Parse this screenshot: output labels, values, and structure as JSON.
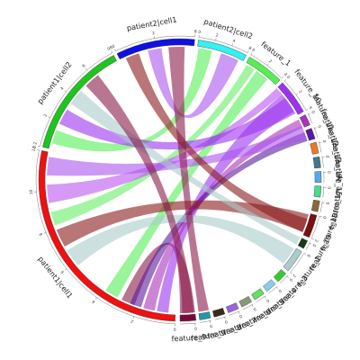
{
  "chart_data": {
    "type": "chord",
    "title": "",
    "sectors": [
      {
        "name": "patient1|cell1",
        "color": "#ee1111",
        "start": 92,
        "end": 192,
        "ticks": [
          "0",
          "2",
          "4",
          "6",
          "8",
          "10",
          "12"
        ]
      },
      {
        "name": "patient1|cell2",
        "color": "#1fc41f",
        "start": 193.5,
        "end": 242,
        "ticks": [
          "0.2",
          "2",
          "4",
          "6",
          "08"
        ]
      },
      {
        "name": "patient2|cell1",
        "color": "#1010e0",
        "start": 243.5,
        "end": 276,
        "ticks": [
          "0",
          "2",
          "8"
        ]
      },
      {
        "name": "patient2|cell2",
        "color": "#33f2f2",
        "start": 277.5,
        "end": 298,
        "ticks": [
          "0",
          "2",
          "4",
          "8"
        ]
      },
      {
        "name": "feature_1",
        "color": "#55ee55",
        "start": 299.5,
        "end": 315,
        "ticks": [
          "0",
          "2",
          "4"
        ]
      },
      {
        "name": "feature_10",
        "color": "#9b33ee",
        "start": 316.5,
        "end": 331,
        "ticks": [
          "0",
          "2",
          "4"
        ]
      },
      {
        "name": "feature_11",
        "color": "#aa33bb",
        "start": 332.5,
        "end": 337,
        "ticks": [
          "0"
        ]
      },
      {
        "name": "feature_12",
        "color": "#5a1a9a",
        "start": 338.5,
        "end": 343,
        "ticks": [
          "0"
        ]
      },
      {
        "name": "feature_13",
        "color": "#ee7722",
        "start": 344.5,
        "end": 349,
        "ticks": [
          "0"
        ]
      },
      {
        "name": "feature_14",
        "color": "#447788",
        "start": 350.5,
        "end": 355,
        "ticks": [
          "0"
        ]
      },
      {
        "name": "feature_15",
        "color": "#55aaee",
        "start": 356.5,
        "end": 361,
        "ticks": [
          "0"
        ]
      },
      {
        "name": "feature_16",
        "color": "#44dd88",
        "start": 362.5,
        "end": 367,
        "ticks": [
          "0"
        ]
      },
      {
        "name": "feature_17",
        "color": "#8a6a3a",
        "start": 368.5,
        "end": 373,
        "ticks": [
          "0"
        ]
      },
      {
        "name": "feature_18",
        "color": "#7a1010",
        "start": 374.5,
        "end": 384,
        "ticks": [
          "0",
          "2"
        ]
      },
      {
        "name": "feature_19",
        "color": "#1a3a1a",
        "start": 385.5,
        "end": 389,
        "ticks": [
          "0"
        ]
      },
      {
        "name": "feature_2",
        "color": "#aacccc",
        "start": 390.5,
        "end": 400,
        "ticks": [
          "0",
          "2"
        ]
      },
      {
        "name": "feature_3",
        "color": "#33cc33",
        "start": 401.5,
        "end": 406,
        "ticks": [
          "0"
        ]
      },
      {
        "name": "feature_4",
        "color": "#88ccee",
        "start": 407.5,
        "end": 412,
        "ticks": [
          "0"
        ]
      },
      {
        "name": "feature_5",
        "color": "#66dd66",
        "start": 413.5,
        "end": 418,
        "ticks": [
          "0"
        ]
      },
      {
        "name": "feature_6",
        "color": "#889977",
        "start": 419.5,
        "end": 424,
        "ticks": [
          "0"
        ]
      },
      {
        "name": "feature_7",
        "color": "#9966dd",
        "start": 425.5,
        "end": 430,
        "ticks": [
          "0"
        ]
      },
      {
        "name": "feature_8",
        "color": "#3a2a1a",
        "start": 431.5,
        "end": 436,
        "ticks": [
          "0"
        ]
      },
      {
        "name": "feature_9",
        "color": "#2299aa",
        "start": 437.5,
        "end": 442,
        "ticks": [
          "0"
        ]
      },
      {
        "name": "feature_9",
        "color": "#770a3a",
        "start": 443.5,
        "end": 450,
        "ticks": [
          "0"
        ]
      }
    ],
    "links": [
      {
        "a": [
          110,
          116
        ],
        "b": [
          443.5,
          450
        ],
        "color": "#8b1a4a"
      },
      {
        "a": [
          95,
          100
        ],
        "b": [
          320,
          329
        ],
        "color": "#9b33ee"
      },
      {
        "a": [
          101,
          106
        ],
        "b": [
          333,
          337
        ],
        "color": "#aa33bb"
      },
      {
        "a": [
          107,
          112
        ],
        "b": [
          339,
          343
        ],
        "color": "#5a1a9a"
      },
      {
        "a": [
          118,
          124
        ],
        "b": [
          305,
          311
        ],
        "color": "#55ee55"
      },
      {
        "a": [
          140,
          148
        ],
        "b": [
          391,
          399
        ],
        "color": "#aacccc"
      },
      {
        "a": [
          150,
          158
        ],
        "b": [
          375,
          383
        ],
        "color": "#8b1a1a"
      },
      {
        "a": [
          160,
          166
        ],
        "b": [
          300,
          304
        ],
        "color": "#66ee66"
      },
      {
        "a": [
          170,
          178
        ],
        "b": [
          316.5,
          320
        ],
        "color": "#bb55ee"
      },
      {
        "a": [
          182,
          190
        ],
        "b": [
          336,
          342
        ],
        "color": "#aa55ee"
      },
      {
        "a": [
          196,
          202
        ],
        "b": [
          278,
          284
        ],
        "color": "#55ee55"
      },
      {
        "a": [
          205,
          212
        ],
        "b": [
          322,
          330
        ],
        "color": "#9b33ee"
      },
      {
        "a": [
          215,
          222
        ],
        "b": [
          385.5,
          389
        ],
        "color": "#aacccc"
      },
      {
        "a": [
          225,
          232
        ],
        "b": [
          444,
          449
        ],
        "color": "#8b1a4a"
      },
      {
        "a": [
          246,
          252
        ],
        "b": [
          377,
          383
        ],
        "color": "#8b1a1a"
      },
      {
        "a": [
          256,
          262
        ],
        "b": [
          288,
          296
        ],
        "color": "#aa55ee"
      },
      {
        "a": [
          265,
          272
        ],
        "b": [
          437.5,
          442
        ],
        "color": "#8b1a4a"
      }
    ]
  }
}
